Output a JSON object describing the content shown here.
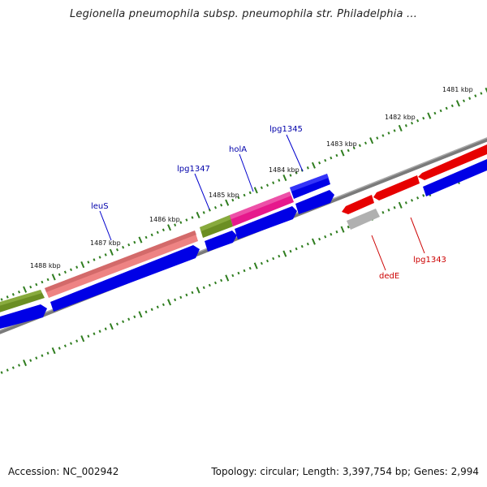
{
  "title": "Legionella pneumophila subsp. pneumophila str. Philadelphia ...",
  "footer": {
    "accession": "Accession: NC_002942",
    "topology": "Topology: circular; Length: 3,397,754 bp; Genes: 2,994"
  },
  "colors": {
    "backbone": "#808080",
    "tick": "#2f7d1f",
    "forward_gene_blue": "#0000e6",
    "olive_gene": "#6b8e23",
    "pink_gene": "#f08080",
    "magenta_gene": "#e6198c",
    "red_gene": "#e60000",
    "gray_gene": "#b0b0b0",
    "label_blue": "#0000aa",
    "label_red": "#cc0000"
  },
  "scale_labels": [
    {
      "text": "1481 kbp",
      "kbp": 1481
    },
    {
      "text": "1482 kbp",
      "kbp": 1482
    },
    {
      "text": "1483 kbp",
      "kbp": 1483
    },
    {
      "text": "1484 kbp",
      "kbp": 1484
    },
    {
      "text": "1485 kbp",
      "kbp": 1485
    },
    {
      "text": "1486 kbp",
      "kbp": 1486
    },
    {
      "text": "1487 kbp",
      "kbp": 1487
    },
    {
      "text": "1488 kbp",
      "kbp": 1488
    }
  ],
  "gene_labels": [
    {
      "id": "leuS",
      "text": "leuS",
      "color": "blue"
    },
    {
      "id": "lpg1347",
      "text": "lpg1347",
      "color": "blue"
    },
    {
      "id": "holA",
      "text": "holA",
      "color": "blue"
    },
    {
      "id": "lpg1345",
      "text": "lpg1345",
      "color": "blue"
    },
    {
      "id": "dedE",
      "text": "dedE",
      "color": "red"
    },
    {
      "id": "lpg1343",
      "text": "lpg1343",
      "color": "red"
    }
  ]
}
